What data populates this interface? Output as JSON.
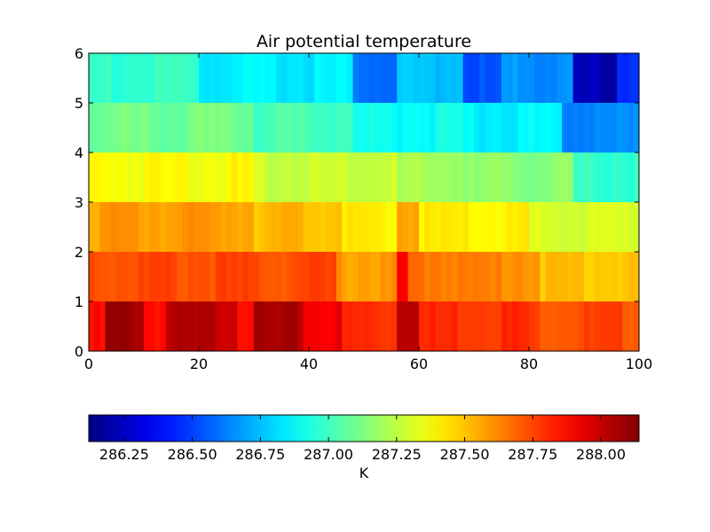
{
  "chart_data": {
    "type": "heatmap",
    "title": "Air potential temperature",
    "xlim": [
      0,
      100
    ],
    "ylim": [
      0,
      6
    ],
    "x_ticks": [
      "0",
      "20",
      "40",
      "60",
      "80",
      "100"
    ],
    "y_ticks": [
      "0",
      "1",
      "2",
      "3",
      "4",
      "5",
      "6"
    ],
    "n_columns": 100,
    "n_rows": 6,
    "colormap": "jet",
    "vmin": 286.12,
    "vmax": 288.14,
    "colorbar": {
      "label": "K",
      "ticks": [
        "286.25",
        "286.50",
        "286.75",
        "287.00",
        "287.25",
        "287.50",
        "287.75",
        "288.00"
      ],
      "location": "bottom"
    },
    "rows": [
      {
        "level": "0-1",
        "segments": [
          {
            "x_range": [
              0,
              3
            ],
            "value": 287.85
          },
          {
            "x_range": [
              3,
              10
            ],
            "value": 288.08
          },
          {
            "x_range": [
              10,
              14
            ],
            "value": 287.88
          },
          {
            "x_range": [
              14,
              27
            ],
            "value": 288.02
          },
          {
            "x_range": [
              27,
              30
            ],
            "value": 287.9
          },
          {
            "x_range": [
              30,
              39
            ],
            "value": 288.04
          },
          {
            "x_range": [
              39,
              46
            ],
            "value": 287.92
          },
          {
            "x_range": [
              46,
              56
            ],
            "value": 287.8
          },
          {
            "x_range": [
              56,
              60
            ],
            "value": 288.06
          },
          {
            "x_range": [
              60,
              80
            ],
            "value": 287.8
          },
          {
            "x_range": [
              80,
              100
            ],
            "value": 287.74
          }
        ]
      },
      {
        "level": "1-2",
        "segments": [
          {
            "x_range": [
              0,
              45
            ],
            "value": 287.74
          },
          {
            "x_range": [
              45,
              56
            ],
            "value": 287.58
          },
          {
            "x_range": [
              56,
              58
            ],
            "value": 287.88
          },
          {
            "x_range": [
              58,
              68
            ],
            "value": 287.66
          },
          {
            "x_range": [
              68,
              82
            ],
            "value": 287.62
          },
          {
            "x_range": [
              82,
              100
            ],
            "value": 287.5
          }
        ]
      },
      {
        "level": "2-3",
        "segments": [
          {
            "x_range": [
              0,
              30
            ],
            "value": 287.58
          },
          {
            "x_range": [
              30,
              46
            ],
            "value": 287.52
          },
          {
            "x_range": [
              46,
              56
            ],
            "value": 287.4
          },
          {
            "x_range": [
              56,
              60
            ],
            "value": 287.58
          },
          {
            "x_range": [
              60,
              80
            ],
            "value": 287.4
          },
          {
            "x_range": [
              80,
              100
            ],
            "value": 287.3
          }
        ]
      },
      {
        "level": "3-4",
        "segments": [
          {
            "x_range": [
              0,
              30
            ],
            "value": 287.38
          },
          {
            "x_range": [
              30,
              56
            ],
            "value": 287.28
          },
          {
            "x_range": [
              56,
              68
            ],
            "value": 287.2
          },
          {
            "x_range": [
              68,
              88
            ],
            "value": 287.15
          },
          {
            "x_range": [
              88,
              100
            ],
            "value": 286.98
          }
        ]
      },
      {
        "level": "4-5",
        "segments": [
          {
            "x_range": [
              0,
              30
            ],
            "value": 287.1
          },
          {
            "x_range": [
              30,
              48
            ],
            "value": 287.02
          },
          {
            "x_range": [
              48,
              68
            ],
            "value": 286.9
          },
          {
            "x_range": [
              68,
              86
            ],
            "value": 286.86
          },
          {
            "x_range": [
              86,
              100
            ],
            "value": 286.64
          }
        ]
      },
      {
        "level": "5-6",
        "segments": [
          {
            "x_range": [
              0,
              20
            ],
            "value": 286.98
          },
          {
            "x_range": [
              20,
              48
            ],
            "value": 286.84
          },
          {
            "x_range": [
              48,
              56
            ],
            "value": 286.6
          },
          {
            "x_range": [
              56,
              68
            ],
            "value": 286.76
          },
          {
            "x_range": [
              68,
              75
            ],
            "value": 286.52
          },
          {
            "x_range": [
              75,
              88
            ],
            "value": 286.66
          },
          {
            "x_range": [
              88,
              96
            ],
            "value": 286.22
          },
          {
            "x_range": [
              96,
              100
            ],
            "value": 286.48
          }
        ]
      }
    ]
  }
}
